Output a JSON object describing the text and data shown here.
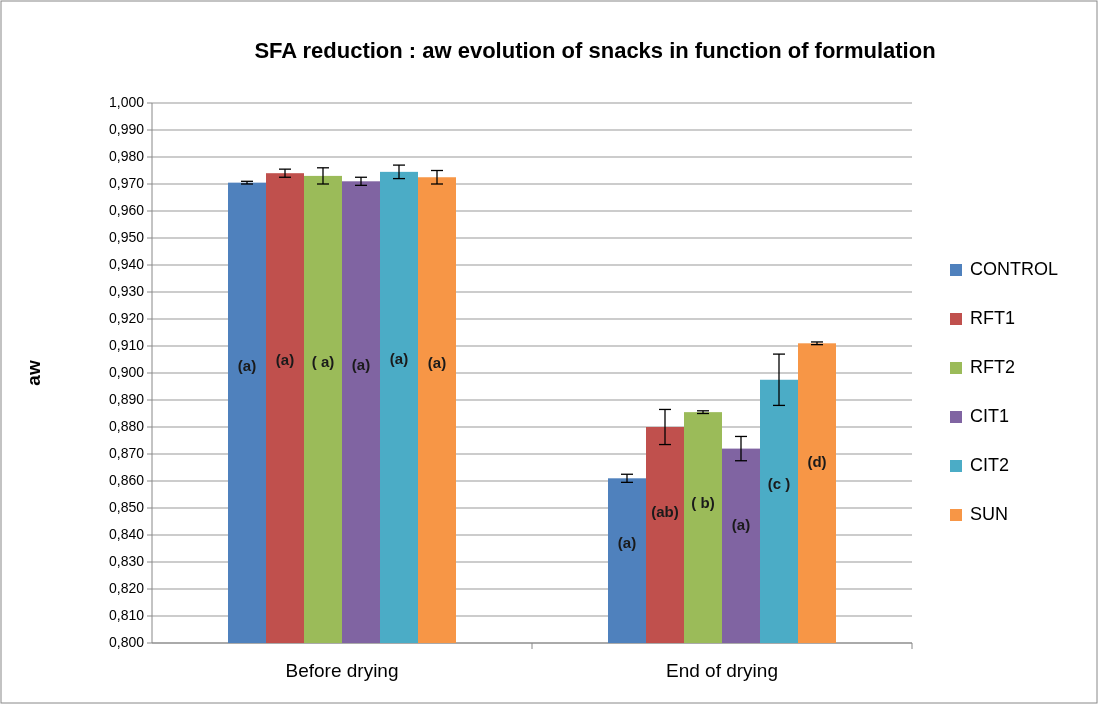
{
  "chart_data": {
    "type": "bar",
    "title": "SFA reduction : aw evolution of snacks in function of formulation",
    "ylabel": "aw",
    "categories": [
      "Before drying",
      "End of drying"
    ],
    "series": [
      {
        "name": "CONTROL",
        "color": "#4f81bd",
        "values": [
          0.9705,
          0.861
        ],
        "errors": [
          0.0005,
          0.0015
        ],
        "value_labels": [
          "(a)",
          "(a)"
        ]
      },
      {
        "name": "RFT1",
        "color": "#c0504d",
        "values": [
          0.974,
          0.88
        ],
        "errors": [
          0.0015,
          0.0065
        ],
        "value_labels": [
          "(a)",
          "(ab)"
        ]
      },
      {
        "name": "RFT2",
        "color": "#9bbb59",
        "values": [
          0.973,
          0.8855
        ],
        "errors": [
          0.003,
          0.0005
        ],
        "value_labels": [
          "( a)",
          "( b)"
        ]
      },
      {
        "name": "CIT1",
        "color": "#8064a2",
        "values": [
          0.971,
          0.872
        ],
        "errors": [
          0.0015,
          0.0045
        ],
        "value_labels": [
          "(a)",
          "(a)"
        ]
      },
      {
        "name": "CIT2",
        "color": "#4bacc6",
        "values": [
          0.9745,
          0.8975
        ],
        "errors": [
          0.0025,
          0.0095
        ],
        "value_labels": [
          "(a)",
          "(c )"
        ]
      },
      {
        "name": "SUN",
        "color": "#f79646",
        "values": [
          0.9725,
          0.911
        ],
        "errors": [
          0.0025,
          0.0005
        ],
        "value_labels": [
          "(a)",
          "(d)"
        ]
      }
    ],
    "ylim": [
      0.8,
      1.0
    ],
    "yticks": [
      {
        "value": 0.8,
        "label": "0,800"
      },
      {
        "value": 0.81,
        "label": "0,810"
      },
      {
        "value": 0.82,
        "label": "0,820"
      },
      {
        "value": 0.83,
        "label": "0,830"
      },
      {
        "value": 0.84,
        "label": "0,840"
      },
      {
        "value": 0.85,
        "label": "0,850"
      },
      {
        "value": 0.86,
        "label": "0,860"
      },
      {
        "value": 0.87,
        "label": "0,870"
      },
      {
        "value": 0.88,
        "label": "0,880"
      },
      {
        "value": 0.89,
        "label": "0,890"
      },
      {
        "value": 0.9,
        "label": "0,900"
      },
      {
        "value": 0.91,
        "label": "0,910"
      },
      {
        "value": 0.92,
        "label": "0,920"
      },
      {
        "value": 0.93,
        "label": "0,930"
      },
      {
        "value": 0.94,
        "label": "0,940"
      },
      {
        "value": 0.95,
        "label": "0,950"
      },
      {
        "value": 0.96,
        "label": "0,960"
      },
      {
        "value": 0.97,
        "label": "0,970"
      },
      {
        "value": 0.98,
        "label": "0,980"
      },
      {
        "value": 0.99,
        "label": "0,990"
      },
      {
        "value": 1.0,
        "label": "1,000"
      }
    ],
    "grid": "y",
    "legend": "right"
  }
}
